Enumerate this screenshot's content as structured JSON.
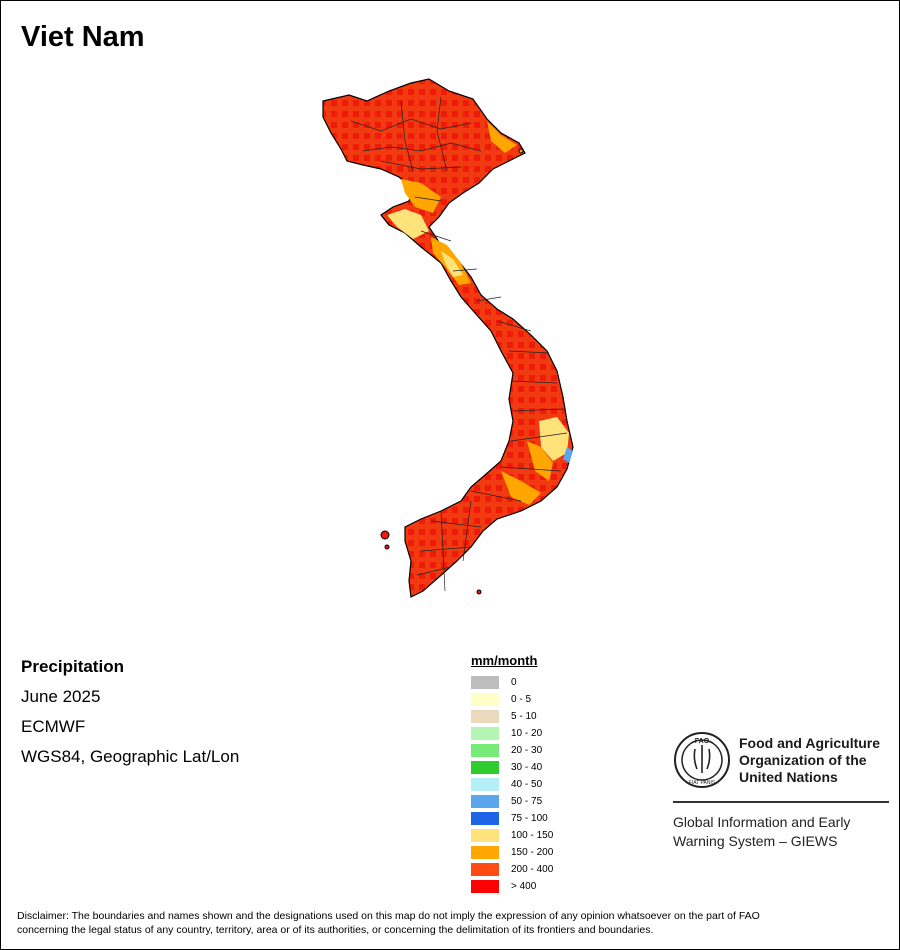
{
  "title": "Viet Nam",
  "map": {
    "variable": "Precipitation",
    "period": "June 2025",
    "source": "ECMWF",
    "projection": "WGS84, Geographic Lat/Lon"
  },
  "legend": {
    "unit": "mm/month",
    "classes": [
      {
        "label": "0",
        "color": "#bdbdbd"
      },
      {
        "label": "0 - 5",
        "color": "#ffffc8"
      },
      {
        "label": "5 - 10",
        "color": "#ead9bd"
      },
      {
        "label": "10 - 20",
        "color": "#b4f5b4"
      },
      {
        "label": "20 - 30",
        "color": "#78ea78"
      },
      {
        "label": "30 - 40",
        "color": "#2fcc2f"
      },
      {
        "label": "40 - 50",
        "color": "#b5eef7"
      },
      {
        "label": "50 - 75",
        "color": "#5aa5ec"
      },
      {
        "label": "75 - 100",
        "color": "#1e64e6"
      },
      {
        "label": "100 - 150",
        "color": "#ffe27a"
      },
      {
        "label": "150 - 200",
        "color": "#ffa600"
      },
      {
        "label": "200 - 400",
        "color": "#ff4b14"
      },
      {
        "label": "> 400",
        "color": "#ff0000"
      }
    ]
  },
  "logo": {
    "org_line1": "Food and Agriculture",
    "org_line2": "Organization of the",
    "org_line3": "United Nations",
    "giews_line1": "Global Information and Early",
    "giews_line2": "Warning System – GIEWS",
    "emblem_letters": "FAO",
    "emblem_motto": "FIAT PANIS"
  },
  "disclaimer_line1": "Disclaimer: The boundaries and names shown and the designations used on this map do not imply the expression of any opinion whatsoever on the part of FAO",
  "disclaimer_line2": "concerning the legal status of any country, territory, area or of its authorities, or concerning the delimitation of its frontiers and boundaries."
}
